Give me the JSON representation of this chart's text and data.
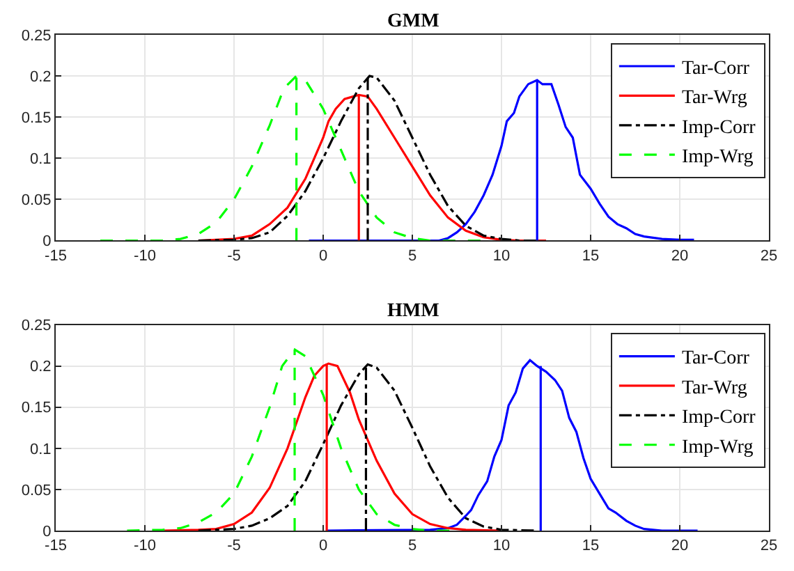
{
  "chart_data": [
    {
      "type": "line",
      "title": "GMM",
      "xlim": [
        -15,
        25
      ],
      "xticks": [
        -15,
        -10,
        -5,
        0,
        5,
        10,
        15,
        20,
        25
      ],
      "ylim": [
        0,
        0.25
      ],
      "yticks": [
        0,
        0.05,
        0.1,
        0.15,
        0.2,
        0.25
      ],
      "grid": true,
      "legend": "top right",
      "marker": "none",
      "series": [
        {
          "name": "Tar-Corr",
          "color": "#0000ff",
          "line_style": "solid",
          "x": [
            -0.8,
            6.5,
            7,
            7.5,
            8,
            8.5,
            9,
            9.5,
            10,
            10.3,
            10.7,
            11,
            11.5,
            12,
            12.3,
            12.8,
            13.2,
            13.6,
            14,
            14.4,
            15,
            15.5,
            16,
            16.5,
            17,
            17.5,
            18,
            19,
            20,
            20.8
          ],
          "values": [
            0,
            0,
            0.003,
            0.01,
            0.02,
            0.035,
            0.055,
            0.08,
            0.115,
            0.145,
            0.155,
            0.175,
            0.19,
            0.195,
            0.19,
            0.19,
            0.165,
            0.138,
            0.125,
            0.08,
            0.063,
            0.045,
            0.029,
            0.02,
            0.015,
            0.008,
            0.005,
            0.002,
            0.001,
            0.001
          ]
        },
        {
          "name": "Tar-Wrg",
          "color": "#ff0000",
          "line_style": "solid",
          "x": [
            -7,
            -5,
            -4,
            -3,
            -2,
            -1,
            -0.5,
            0,
            0.3,
            0.7,
            1.2,
            2,
            2.5,
            3,
            4,
            5,
            6,
            7,
            8,
            9,
            10,
            11,
            12.5
          ],
          "values": [
            0,
            0.002,
            0.006,
            0.02,
            0.04,
            0.075,
            0.1,
            0.125,
            0.145,
            0.16,
            0.172,
            0.177,
            0.175,
            0.16,
            0.125,
            0.09,
            0.055,
            0.028,
            0.012,
            0.004,
            0.001,
            0,
            0
          ]
        },
        {
          "name": "Imp-Corr",
          "color": "#000000",
          "line_style": "dashdot",
          "x": [
            -7,
            -5,
            -4,
            -3,
            -2,
            -1,
            0,
            1,
            2,
            2.6,
            3,
            4,
            5,
            6,
            7,
            8,
            9,
            10,
            11,
            12
          ],
          "values": [
            0,
            0.001,
            0.003,
            0.01,
            0.03,
            0.06,
            0.1,
            0.145,
            0.185,
            0.2,
            0.198,
            0.17,
            0.125,
            0.08,
            0.042,
            0.018,
            0.006,
            0.002,
            0,
            0
          ]
        },
        {
          "name": "Imp-Wrg",
          "color": "#00ff00",
          "line_style": "dashed",
          "x": [
            -12.5,
            -9,
            -8,
            -7,
            -6,
            -5,
            -4,
            -3,
            -2.2,
            -1.5,
            -1,
            0,
            1,
            2,
            3,
            4,
            5,
            6,
            9
          ],
          "values": [
            0,
            0,
            0.002,
            0.008,
            0.022,
            0.05,
            0.09,
            0.14,
            0.185,
            0.2,
            0.195,
            0.16,
            0.11,
            0.06,
            0.028,
            0.01,
            0.003,
            0,
            0
          ]
        },
        {
          "color": "#0000ff",
          "line_style": "solid",
          "x": [
            12,
            12
          ],
          "values": [
            0,
            0.195
          ]
        },
        {
          "color": "#ff0000",
          "line_style": "solid",
          "x": [
            2,
            2
          ],
          "values": [
            0,
            0.177
          ]
        },
        {
          "color": "#000000",
          "line_style": "dashdot",
          "x": [
            2.5,
            2.5
          ],
          "values": [
            0,
            0.2
          ]
        },
        {
          "color": "#00ff00",
          "line_style": "dashed",
          "x": [
            -1.5,
            -1.5
          ],
          "values": [
            0,
            0.2
          ]
        }
      ]
    },
    {
      "type": "line",
      "title": "HMM",
      "xlim": [
        -15,
        25
      ],
      "xticks": [
        -15,
        -10,
        -5,
        0,
        5,
        10,
        15,
        20,
        25
      ],
      "ylim": [
        0,
        0.25
      ],
      "yticks": [
        0,
        0.05,
        0.1,
        0.15,
        0.2,
        0.25
      ],
      "grid": true,
      "legend": "top right",
      "marker": "none",
      "series": [
        {
          "name": "Tar-Corr",
          "color": "#0000ff",
          "line_style": "solid",
          "x": [
            0.2,
            6,
            7,
            7.5,
            8,
            8.3,
            8.7,
            9.2,
            9.6,
            10,
            10.4,
            10.8,
            11.2,
            11.6,
            12,
            12.5,
            13,
            13.4,
            13.8,
            14.2,
            14.6,
            15,
            15.5,
            16,
            16.4,
            17,
            17.5,
            18,
            19,
            21
          ],
          "values": [
            0,
            0.001,
            0.003,
            0.007,
            0.018,
            0.025,
            0.043,
            0.06,
            0.09,
            0.11,
            0.152,
            0.168,
            0.197,
            0.207,
            0.2,
            0.193,
            0.183,
            0.17,
            0.137,
            0.12,
            0.088,
            0.063,
            0.045,
            0.027,
            0.022,
            0.012,
            0.006,
            0.002,
            0,
            0
          ]
        },
        {
          "name": "Tar-Wrg",
          "color": "#ff0000",
          "line_style": "solid",
          "x": [
            -9,
            -7,
            -6,
            -5,
            -4,
            -3,
            -2,
            -1,
            -0.5,
            0,
            0.3,
            0.8,
            1.5,
            2,
            3,
            4,
            5,
            6,
            7,
            8,
            10
          ],
          "values": [
            0,
            0.001,
            0.002,
            0.008,
            0.022,
            0.052,
            0.1,
            0.162,
            0.188,
            0.2,
            0.203,
            0.2,
            0.168,
            0.135,
            0.085,
            0.045,
            0.02,
            0.008,
            0.003,
            0.001,
            0
          ]
        },
        {
          "name": "Imp-Corr",
          "color": "#000000",
          "line_style": "dashdot",
          "x": [
            -7,
            -5,
            -4,
            -3,
            -2,
            -1,
            0,
            1,
            2,
            2.5,
            3,
            4,
            5,
            6,
            7,
            8,
            9,
            10,
            12
          ],
          "values": [
            0,
            0.002,
            0.006,
            0.015,
            0.03,
            0.06,
            0.105,
            0.152,
            0.19,
            0.202,
            0.198,
            0.17,
            0.125,
            0.078,
            0.04,
            0.015,
            0.005,
            0.001,
            0
          ]
        },
        {
          "name": "Imp-Wrg",
          "color": "#00ff00",
          "line_style": "dashed",
          "x": [
            -11,
            -9,
            -8,
            -7,
            -6,
            -5,
            -4,
            -3,
            -2.3,
            -1.6,
            -1,
            0,
            1,
            2,
            3,
            4,
            5,
            6,
            7.5
          ],
          "values": [
            0,
            0.001,
            0.003,
            0.01,
            0.022,
            0.045,
            0.09,
            0.15,
            0.2,
            0.22,
            0.212,
            0.165,
            0.1,
            0.05,
            0.02,
            0.007,
            0.002,
            0,
            0
          ]
        },
        {
          "color": "#0000ff",
          "line_style": "solid",
          "x": [
            12.2,
            12.2
          ],
          "values": [
            0,
            0.2
          ]
        },
        {
          "color": "#ff0000",
          "line_style": "solid",
          "x": [
            0.2,
            0.2
          ],
          "values": [
            0,
            0.203
          ]
        },
        {
          "color": "#000000",
          "line_style": "dashdot",
          "x": [
            2.4,
            2.4
          ],
          "values": [
            0,
            0.202
          ]
        },
        {
          "color": "#00ff00",
          "line_style": "dashed",
          "x": [
            -1.6,
            -1.6
          ],
          "values": [
            0,
            0.22
          ]
        }
      ]
    }
  ]
}
